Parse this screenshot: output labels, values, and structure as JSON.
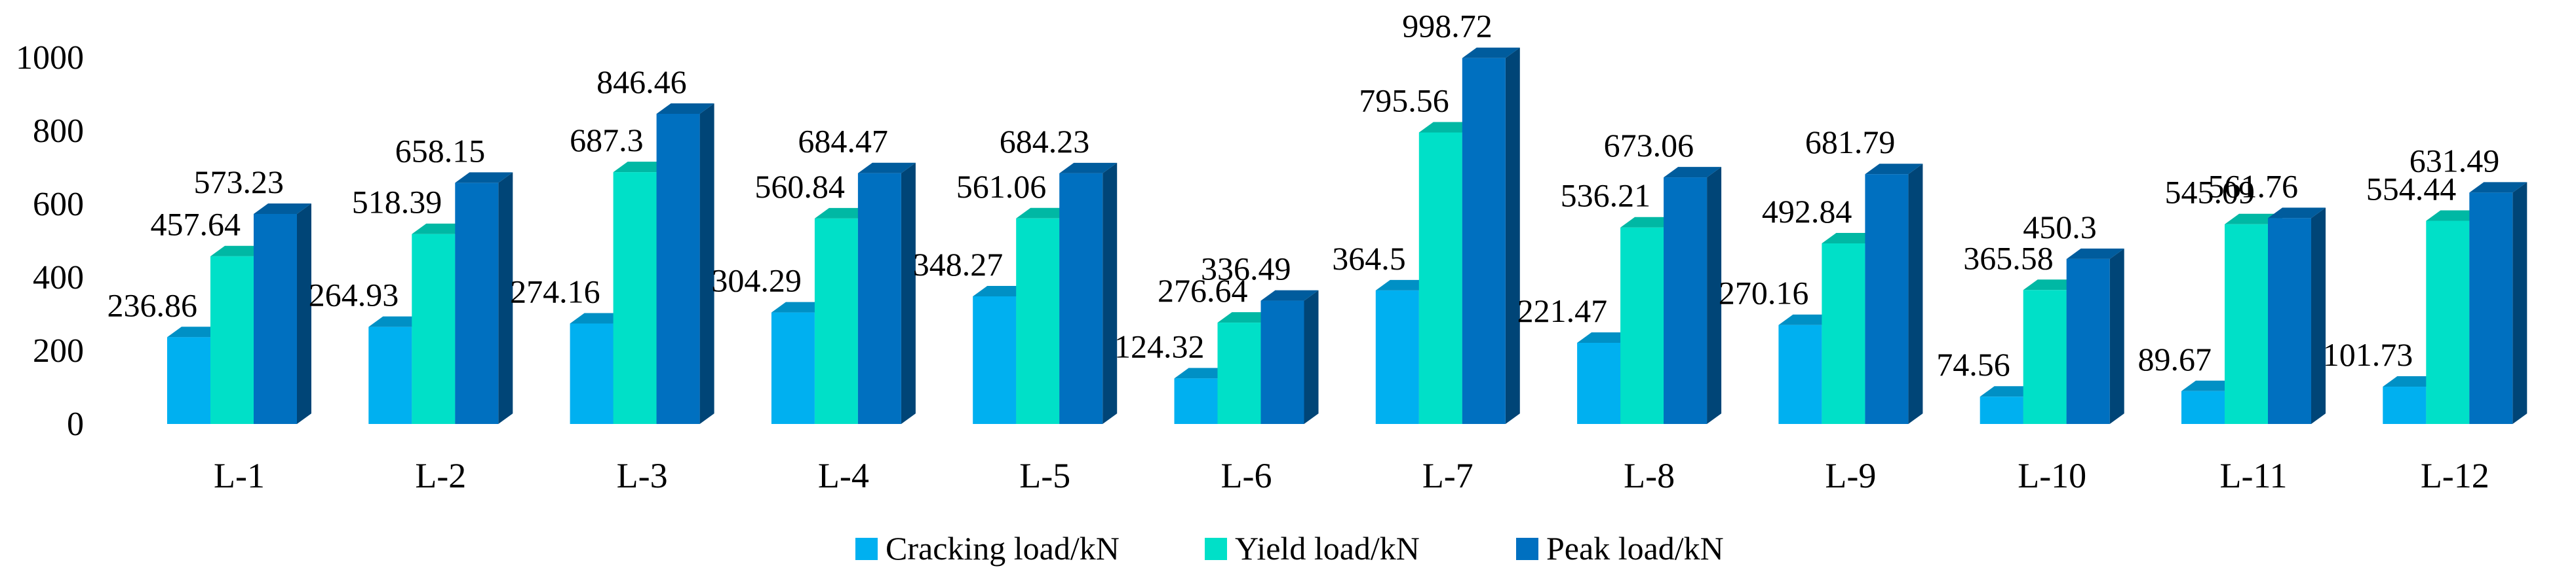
{
  "chart_data": {
    "type": "bar",
    "style": "3d-clustered",
    "title": "",
    "xlabel": "",
    "ylabel": "",
    "ylim": [
      0,
      1000
    ],
    "yticks": [
      0,
      200,
      400,
      600,
      800,
      1000
    ],
    "grid": false,
    "legend_position": "bottom",
    "categories": [
      "L-1",
      "L-2",
      "L-3",
      "L-4",
      "L-5",
      "L-6",
      "L-7",
      "L-8",
      "L-9",
      "L-10",
      "L-11",
      "L-12"
    ],
    "series": [
      {
        "name": "Cracking load/kN",
        "color": "#00B0F0",
        "values": [
          236.86,
          264.93,
          274.16,
          304.29,
          348.27,
          124.32,
          364.5,
          221.47,
          270.16,
          74.56,
          89.67,
          101.73
        ]
      },
      {
        "name": "Yield load/kN",
        "color": "#00E0C8",
        "values": [
          457.64,
          518.39,
          687.3,
          560.84,
          561.06,
          276.64,
          795.56,
          536.21,
          492.84,
          365.58,
          545.09,
          554.44
        ]
      },
      {
        "name": "Peak load/kN",
        "color": "#0070C0",
        "values": [
          573.23,
          658.15,
          846.46,
          684.47,
          684.23,
          336.49,
          998.72,
          673.06,
          681.79,
          450.3,
          561.76,
          631.49
        ]
      }
    ]
  }
}
